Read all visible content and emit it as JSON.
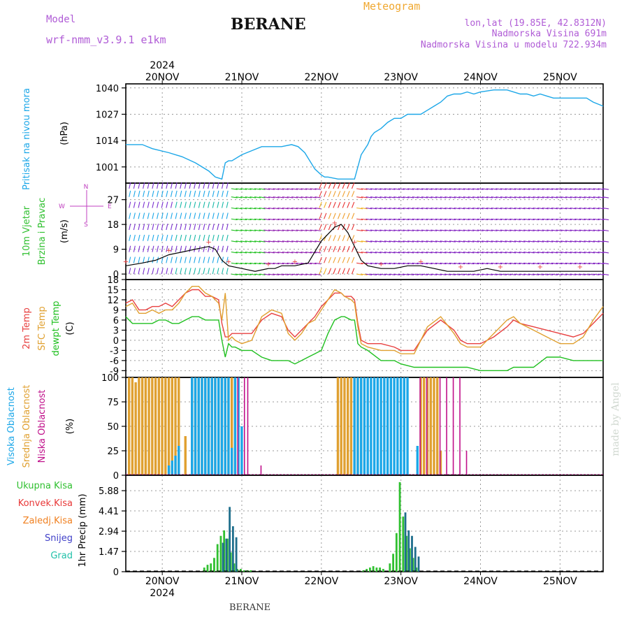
{
  "header": {
    "model_label": "Model",
    "model_name": "wrf-nmm_v3.9.1 e1km",
    "station": "BERANE",
    "product": "Meteogram",
    "lonlat": "lon,lat (19.85E, 42.8312N)",
    "altitude": "Nadmorska Visina 691m",
    "model_altitude": "Nadmorska Visina u modelu 722.934m",
    "footer_station": "BERANE",
    "credit": "made by Angel"
  },
  "colors": {
    "model": "#b05cd6",
    "product": "#f0a830",
    "pressure": "#1ca7e8",
    "temp_2m": "#e84040",
    "temp_sfc": "#e0a030",
    "dewpoint": "#20c020",
    "cloud_high": "#1ca7e8",
    "cloud_mid": "#e0a030",
    "cloud_low": "#c0108a",
    "precip_total": "#30c030",
    "precip_conv": "#e83838",
    "precip_frz": "#f08020",
    "precip_snow": "#4040c8",
    "precip_graupel": "#20c0a8",
    "precip_bar": "#1e6e8c",
    "wind_legend": "#c040c0"
  },
  "chart_data": [
    {
      "type": "line",
      "panel": "pressure",
      "ylabel_lines": [
        "Pritisak na nivou mora",
        "(hPa)"
      ],
      "yticks": [
        1001,
        1014,
        1027,
        1040
      ],
      "ylim": [
        993,
        1042
      ],
      "xlim": [
        -11,
        133
      ],
      "x_unit": "hours since 2024-11-20 00:00",
      "top_tick_labels": [
        "20NOV",
        "21NOV",
        "22NOV",
        "23NOV",
        "24NOV",
        "25NOV"
      ],
      "top_year": "2024",
      "series": [
        {
          "key": "pressure",
          "x": [
            -11,
            -6,
            -3,
            2,
            6,
            10,
            14,
            16,
            18,
            19,
            20,
            21,
            24,
            27,
            30,
            33,
            36,
            39,
            41,
            43,
            46,
            48,
            49,
            50,
            53,
            56,
            58,
            60,
            62,
            63,
            64,
            66,
            68,
            70,
            72,
            74,
            76,
            78,
            80,
            82,
            84,
            86,
            88,
            90,
            92,
            94,
            96,
            100,
            104,
            108,
            110,
            112,
            114,
            116,
            118,
            120,
            122,
            124,
            126,
            128,
            130,
            133
          ],
          "values": [
            1012,
            1012,
            1010,
            1008,
            1006,
            1003,
            999,
            996,
            995,
            1003,
            1004,
            1004,
            1007,
            1009,
            1011,
            1011,
            1011,
            1012,
            1011,
            1008,
            1000,
            997,
            996,
            996,
            995,
            995,
            995,
            1007,
            1012,
            1016,
            1018,
            1020,
            1023,
            1025,
            1025,
            1027,
            1027,
            1027,
            1029,
            1031,
            1033,
            1036,
            1037,
            1037,
            1038,
            1037,
            1038,
            1039,
            1039,
            1037,
            1037,
            1036,
            1037,
            1036,
            1035,
            1035,
            1035,
            1035,
            1035,
            1035,
            1033,
            1031
          ]
        }
      ]
    },
    {
      "type": "scatter",
      "panel": "wind",
      "ylabel_lines": [
        "10m Vjetar",
        "Brzina i Pravac",
        "(m/s)"
      ],
      "yticks": [
        0,
        9,
        18,
        27
      ],
      "ylim": [
        -2,
        33
      ],
      "legend_labels": [
        "N",
        "E",
        "W",
        "S"
      ],
      "series": [
        {
          "name": "Brzina",
          "x": [
            -11,
            -6,
            -2,
            2,
            6,
            10,
            14,
            16,
            18,
            20,
            24,
            28,
            32,
            34,
            36,
            40,
            44,
            48,
            52,
            54,
            56,
            58,
            60,
            62,
            66,
            70,
            74,
            78,
            82,
            86,
            90,
            94,
            98,
            102,
            106,
            110,
            114,
            118,
            122,
            126,
            130,
            133
          ],
          "values": [
            3,
            4,
            5,
            7,
            8,
            9,
            10,
            9,
            5,
            3,
            2,
            1,
            2,
            2,
            3,
            3,
            4,
            12,
            17,
            18,
            15,
            10,
            5,
            3,
            2,
            2,
            3,
            3,
            2,
            1,
            1,
            1,
            2,
            1,
            1,
            1,
            1,
            1,
            1,
            1,
            1,
            1
          ]
        }
      ]
    },
    {
      "type": "line",
      "panel": "temperature",
      "ylabel_lines": [
        "2m Temp",
        "SFC Temp",
        "dewpt Temp",
        "(C)"
      ],
      "yticks": [
        -9,
        -6,
        -3,
        0,
        3,
        6,
        9,
        12,
        15,
        18
      ],
      "ylim": [
        -11,
        18
      ],
      "series": [
        {
          "name": "2m Temp",
          "key": "temp_2m",
          "x": [
            -11,
            -9,
            -7,
            -5,
            -3,
            -1,
            1,
            3,
            5,
            7,
            9,
            11,
            13,
            15,
            17,
            18,
            19,
            20,
            21,
            22,
            24,
            27,
            30,
            33,
            36,
            38,
            40,
            42,
            44,
            46,
            48,
            50,
            52,
            54,
            55,
            57,
            58,
            59,
            60,
            62,
            66,
            70,
            72,
            76,
            80,
            84,
            88,
            90,
            92,
            96,
            100,
            104,
            106,
            108,
            112,
            116,
            120,
            124,
            127,
            130,
            133
          ],
          "values": [
            11,
            12,
            9,
            9,
            10,
            10,
            11,
            10,
            12,
            14,
            15,
            15,
            13,
            13,
            12,
            5,
            1,
            1,
            2,
            2,
            2,
            2,
            6,
            8,
            7,
            3,
            1,
            3,
            5,
            7,
            10,
            12,
            14,
            14,
            13,
            13,
            12,
            5,
            0,
            -1,
            -1,
            -2,
            -3,
            -3,
            3,
            6,
            3,
            0,
            -1,
            -1,
            1,
            4,
            6,
            5,
            4,
            3,
            2,
            1,
            2,
            5,
            8
          ]
        },
        {
          "name": "SFC Temp",
          "key": "temp_sfc",
          "x": [
            -11,
            -9,
            -7,
            -5,
            -3,
            -1,
            1,
            3,
            5,
            7,
            9,
            11,
            13,
            15,
            17,
            18,
            19,
            20,
            21,
            22,
            24,
            27,
            30,
            33,
            36,
            38,
            40,
            42,
            44,
            46,
            48,
            50,
            52,
            54,
            55,
            57,
            58,
            59,
            60,
            62,
            66,
            70,
            72,
            76,
            80,
            84,
            88,
            90,
            92,
            96,
            100,
            104,
            106,
            108,
            112,
            116,
            120,
            124,
            127,
            130,
            133
          ],
          "values": [
            10,
            11,
            8,
            8,
            9,
            8,
            9,
            9,
            11,
            14,
            16,
            16,
            14,
            13,
            11,
            6,
            14,
            0,
            1,
            0,
            -1,
            0,
            7,
            9,
            8,
            2,
            0,
            2,
            5,
            6,
            9,
            12,
            15,
            14,
            13,
            12,
            11,
            4,
            -1,
            -2,
            -3,
            -3,
            -4,
            -4,
            4,
            7,
            2,
            -1,
            -2,
            -2,
            2,
            6,
            7,
            5,
            3,
            1,
            -1,
            -1,
            1,
            6,
            10
          ]
        },
        {
          "name": "dewpt Temp",
          "key": "dewpoint",
          "x": [
            -11,
            -9,
            -7,
            -5,
            -3,
            -1,
            1,
            3,
            5,
            7,
            9,
            11,
            13,
            15,
            17,
            18,
            19,
            20,
            21,
            22,
            24,
            27,
            30,
            33,
            36,
            38,
            40,
            42,
            44,
            46,
            48,
            50,
            52,
            54,
            55,
            57,
            58,
            59,
            60,
            62,
            66,
            70,
            72,
            76,
            80,
            84,
            88,
            90,
            92,
            96,
            100,
            104,
            106,
            108,
            112,
            116,
            120,
            124,
            127,
            130,
            133
          ],
          "values": [
            7,
            5,
            5,
            5,
            5,
            6,
            6,
            5,
            5,
            6,
            7,
            7,
            6,
            6,
            6,
            0,
            -5,
            -1,
            -2,
            -2,
            -3,
            -3,
            -5,
            -6,
            -6,
            -6,
            -7,
            -6,
            -5,
            -4,
            -3,
            2,
            6,
            7,
            7,
            6,
            6,
            -1,
            -2,
            -3,
            -6,
            -6,
            -7,
            -8,
            -8,
            -8,
            -8,
            -8,
            -8,
            -9,
            -9,
            -9,
            -8,
            -8,
            -8,
            -5,
            -5,
            -6,
            -6,
            -6,
            -6
          ]
        }
      ]
    },
    {
      "type": "bar",
      "panel": "clouds",
      "ylabel_lines": [
        "Visoka Oblacnost",
        "Srednja Oblacnost",
        "Niska Oblacnost",
        "(%)"
      ],
      "yticks": [
        0,
        25,
        50,
        75,
        100
      ],
      "ylim": [
        0,
        100
      ],
      "series": [
        {
          "name": "Visoka Oblacnost",
          "key": "cloud_high",
          "x": [
            2,
            3,
            4,
            5,
            9,
            10,
            11,
            12,
            13,
            14,
            15,
            16,
            17,
            18,
            19,
            20,
            21,
            22,
            23,
            24,
            58,
            59,
            60,
            61,
            62,
            63,
            64,
            65,
            66,
            67,
            68,
            69,
            70,
            71,
            72,
            73,
            74,
            77
          ],
          "values": [
            10,
            15,
            20,
            30,
            100,
            100,
            100,
            100,
            100,
            100,
            100,
            100,
            100,
            100,
            100,
            100,
            28,
            100,
            100,
            50,
            100,
            100,
            100,
            100,
            100,
            100,
            100,
            100,
            100,
            100,
            100,
            100,
            100,
            100,
            100,
            100,
            100,
            30
          ]
        },
        {
          "name": "Srednja Oblacnost",
          "key": "cloud_mid",
          "x": [
            -10,
            -9,
            -8,
            -7,
            -6,
            -5,
            -4,
            -3,
            -2,
            -1,
            0,
            1,
            2,
            3,
            4,
            5,
            7,
            9,
            10,
            11,
            12,
            13,
            14,
            15,
            16,
            17,
            18,
            19,
            20,
            21,
            22,
            53,
            54,
            55,
            56,
            57,
            58,
            59,
            60,
            78,
            79,
            80,
            81,
            82,
            83,
            84
          ],
          "values": [
            100,
            100,
            95,
            100,
            100,
            100,
            100,
            100,
            100,
            100,
            100,
            100,
            100,
            100,
            100,
            100,
            40,
            100,
            100,
            100,
            100,
            100,
            100,
            100,
            100,
            100,
            100,
            100,
            100,
            100,
            100,
            100,
            100,
            100,
            100,
            100,
            100,
            100,
            100,
            100,
            100,
            100,
            100,
            100,
            100,
            25
          ]
        },
        {
          "name": "Niska Oblacnost",
          "key": "cloud_low",
          "x": [
            23,
            25,
            26,
            30,
            78,
            80,
            84,
            86,
            88,
            90,
            92
          ],
          "values": [
            100,
            100,
            100,
            10,
            100,
            100,
            100,
            100,
            100,
            100,
            25
          ]
        }
      ]
    },
    {
      "type": "bar",
      "panel": "precipitation",
      "ylabel_lines": [
        "1hr Precip",
        "(mm)"
      ],
      "legend_labels": [
        "Ukupna Kisa",
        "Konvek.Kisa",
        "Zaledj.Kisa",
        "Snijeg",
        "Grad"
      ],
      "yticks": [
        0,
        1.47,
        2.94,
        4.41,
        5.88
      ],
      "ylim": [
        0,
        7
      ],
      "bottom_tick_labels": [
        "20NOV",
        "21NOV",
        "22NOV",
        "23NOV",
        "24NOV",
        "25NOV"
      ],
      "bottom_year": "2024",
      "series": [
        {
          "name": "Ukupna Kisa",
          "key": "precip_total",
          "x": [
            13,
            14,
            15,
            16,
            17,
            18,
            19,
            20,
            21,
            22,
            23,
            24,
            25,
            26,
            27,
            61,
            62,
            63,
            64,
            65,
            66,
            67,
            69,
            70,
            71,
            72,
            73,
            74,
            75,
            76,
            77
          ],
          "values": [
            0.3,
            0.5,
            0.6,
            1.0,
            2.0,
            2.6,
            3.0,
            2.4,
            1.4,
            0.6,
            0.2,
            0.2,
            0.1,
            0.1,
            0.1,
            0.1,
            0.2,
            0.3,
            0.4,
            0.3,
            0.3,
            0.2,
            0.6,
            1.3,
            2.8,
            6.5,
            4.0,
            2.6,
            1.7,
            1.0,
            0.3
          ]
        },
        {
          "name": "1hr Precip",
          "key": "precip_bar",
          "x": [
            18,
            19,
            20,
            21,
            22,
            73,
            74,
            75,
            76,
            77
          ],
          "values": [
            2.1,
            2.4,
            4.7,
            3.3,
            2.5,
            4.3,
            3.0,
            2.6,
            1.8,
            1.1
          ]
        }
      ]
    }
  ]
}
